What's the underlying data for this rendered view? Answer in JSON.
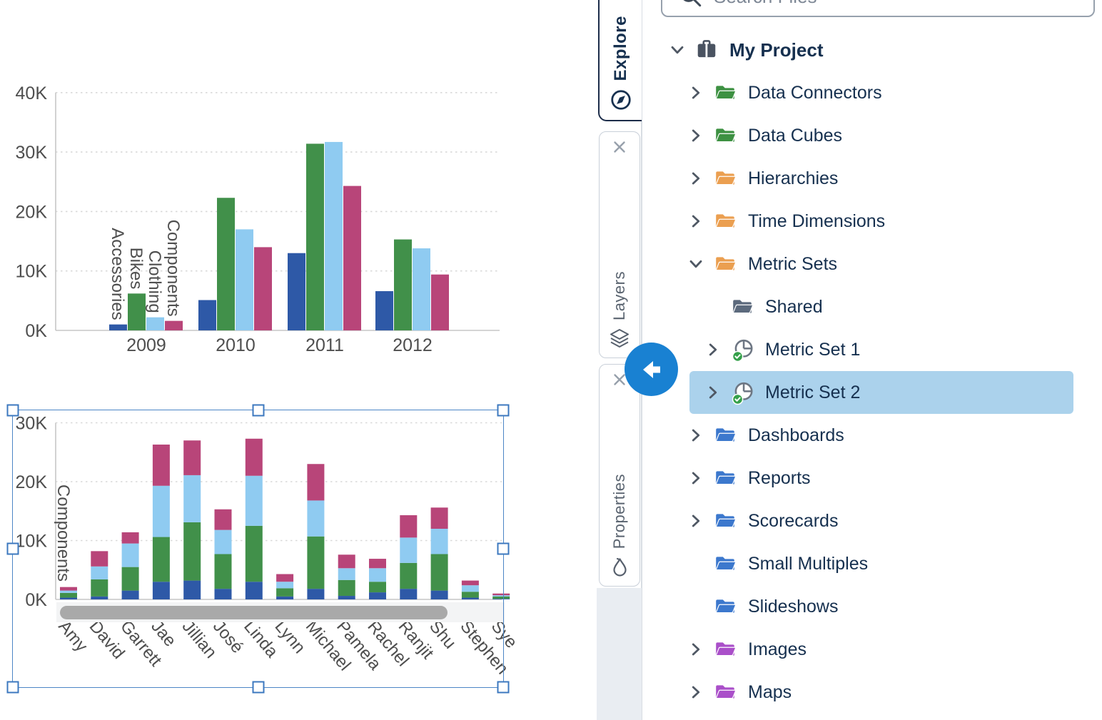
{
  "panel": {
    "search_placeholder": "Search Files",
    "tabs": [
      {
        "label": "Explore",
        "icon": "compass-icon",
        "active": true
      },
      {
        "label": "Layers",
        "icon": "layers-icon",
        "active": false
      },
      {
        "label": "Properties",
        "icon": "properties-icon",
        "active": false
      }
    ],
    "collapse_button": {
      "icon": "arrow-left-icon",
      "color": "#1981d2"
    },
    "tree": [
      {
        "label": "My Project",
        "icon": "briefcase-icon",
        "color": "#4a5361",
        "chevron": "down",
        "level": 0,
        "bold": true
      },
      {
        "label": "Data Connectors",
        "icon": "folder-icon",
        "color": "#3d9142",
        "chevron": "right",
        "level": 1
      },
      {
        "label": "Data Cubes",
        "icon": "folder-icon",
        "color": "#3d9142",
        "chevron": "right",
        "level": 1
      },
      {
        "label": "Hierarchies",
        "icon": "folder-icon",
        "color": "#eb9f50",
        "chevron": "right",
        "level": 1
      },
      {
        "label": "Time Dimensions",
        "icon": "folder-icon",
        "color": "#eb9f50",
        "chevron": "right",
        "level": 1
      },
      {
        "label": "Metric Sets",
        "icon": "folder-icon",
        "color": "#eb9f50",
        "chevron": "down",
        "level": 1
      },
      {
        "label": "Shared",
        "icon": "folder-icon",
        "color": "#5c6a7d",
        "chevron": "none",
        "level": 2
      },
      {
        "label": "Metric Set 1",
        "icon": "metric-set-icon",
        "color": "#6d7683",
        "chevron": "right",
        "level": 2,
        "badge": "check"
      },
      {
        "label": "Metric Set 2",
        "icon": "metric-set-icon",
        "color": "#6d7683",
        "chevron": "right",
        "level": 2,
        "badge": "check",
        "selected": true
      },
      {
        "label": "Dashboards",
        "icon": "folder-icon",
        "color": "#3c78cd",
        "chevron": "right",
        "level": 1
      },
      {
        "label": "Reports",
        "icon": "folder-icon",
        "color": "#3c78cd",
        "chevron": "right",
        "level": 1
      },
      {
        "label": "Scorecards",
        "icon": "folder-icon",
        "color": "#3c78cd",
        "chevron": "right",
        "level": 1
      },
      {
        "label": "Small Multiples",
        "icon": "folder-icon",
        "color": "#3c78cd",
        "chevron": "none",
        "level": 1
      },
      {
        "label": "Slideshows",
        "icon": "folder-icon",
        "color": "#3c78cd",
        "chevron": "none",
        "level": 1
      },
      {
        "label": "Images",
        "icon": "folder-icon",
        "color": "#aa4fc9",
        "chevron": "right",
        "level": 1
      },
      {
        "label": "Maps",
        "icon": "folder-icon",
        "color": "#aa4fc9",
        "chevron": "right",
        "level": 1
      }
    ],
    "selected_row_color": "#abd2ec"
  },
  "chart_data": [
    {
      "type": "bar",
      "title": "",
      "categories": [
        "2009",
        "2010",
        "2011",
        "2012"
      ],
      "series": [
        {
          "name": "Accessories",
          "color": "#2e59a7",
          "values": [
            1.0,
            5.1,
            13.0,
            6.6
          ]
        },
        {
          "name": "Bikes",
          "color": "#41904a",
          "values": [
            6.2,
            22.3,
            31.4,
            15.3
          ]
        },
        {
          "name": "Clothing",
          "color": "#8fcbf1",
          "values": [
            2.2,
            17.0,
            31.7,
            13.8
          ]
        },
        {
          "name": "Components",
          "color": "#b84579",
          "values": [
            1.6,
            14.0,
            24.3,
            9.4
          ]
        }
      ],
      "unit": "K",
      "ylim": [
        0,
        40
      ],
      "yticks": [
        "0K",
        "10K",
        "20K",
        "30K",
        "40K"
      ],
      "grid": "dotted horizontal",
      "series_labels_over_first_group": true,
      "legend": "none"
    },
    {
      "type": "bar",
      "stacked": true,
      "title": "",
      "selected": true,
      "axis_series_label": "Components",
      "categories": [
        "Amy",
        "David",
        "Garrett",
        "Jae",
        "Jillian",
        "José",
        "Linda",
        "Lynn",
        "Michael",
        "Pamela",
        "Rachel",
        "Ranjit",
        "Shu",
        "Stephen",
        "Sye"
      ],
      "series": [
        {
          "name": "Accessories",
          "color": "#2e59a7",
          "values": [
            0.3,
            0.5,
            1.5,
            3.0,
            3.2,
            1.8,
            3.0,
            0.5,
            1.8,
            0.6,
            1.2,
            1.8,
            1.5,
            0.3,
            0.1
          ]
        },
        {
          "name": "Bikes",
          "color": "#41904a",
          "values": [
            0.8,
            2.9,
            4.0,
            7.6,
            9.9,
            5.9,
            9.5,
            1.4,
            8.9,
            2.7,
            1.8,
            4.4,
            6.2,
            1.0,
            0.4
          ]
        },
        {
          "name": "Clothing",
          "color": "#8fcbf1",
          "values": [
            0.4,
            2.2,
            4.0,
            8.7,
            8.0,
            4.1,
            8.5,
            1.1,
            6.1,
            2.0,
            2.3,
            4.3,
            4.3,
            1.1,
            0.2
          ]
        },
        {
          "name": "Components",
          "color": "#b84579",
          "values": [
            0.6,
            2.6,
            1.9,
            7.0,
            5.9,
            3.5,
            6.3,
            1.3,
            6.2,
            2.3,
            1.6,
            3.8,
            3.6,
            0.8,
            0.3
          ]
        }
      ],
      "unit": "K",
      "ylim": [
        0,
        30
      ],
      "yticks": [
        "0K",
        "10K",
        "20K",
        "30K"
      ],
      "grid": "dotted horizontal",
      "scrollbar": true,
      "legend": "none"
    }
  ]
}
